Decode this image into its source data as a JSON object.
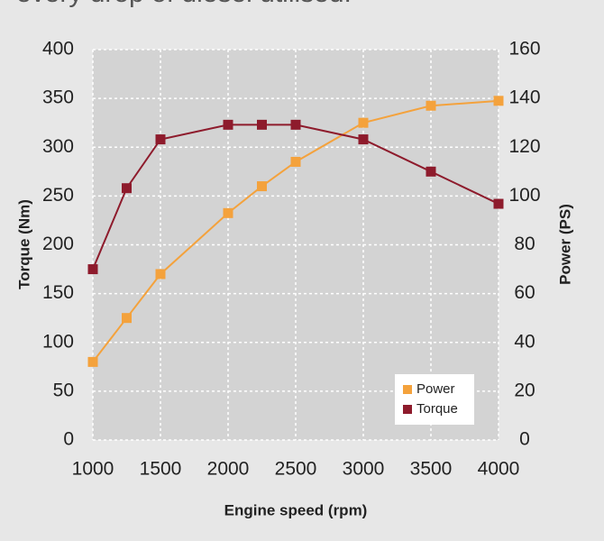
{
  "chart_data": {
    "type": "line",
    "caption": "every drop of diesel utilised.",
    "xlabel": "Engine speed (rpm)",
    "ylabel": "Torque (Nm)",
    "y2label": "Power (PS)",
    "x": [
      1000,
      1250,
      1500,
      2000,
      2250,
      2500,
      3000,
      3500,
      4000
    ],
    "xlim": [
      1000,
      4000
    ],
    "xticks": [
      1000,
      1500,
      2000,
      2500,
      3000,
      3500,
      4000
    ],
    "ylim": [
      0,
      400
    ],
    "yticks": [
      0,
      50,
      100,
      150,
      200,
      250,
      300,
      350,
      400
    ],
    "y2lim": [
      0,
      160
    ],
    "y2ticks": [
      0,
      20,
      40,
      60,
      80,
      100,
      120,
      140,
      160
    ],
    "grid": true,
    "legend": "lower right",
    "series": [
      {
        "name": "Power",
        "color": "#f4a23c",
        "axis": "y2",
        "values": [
          32,
          50,
          68,
          93,
          104,
          114,
          130,
          137,
          139
        ]
      },
      {
        "name": "Torque",
        "color": "#8e1b2c",
        "values": [
          175,
          258,
          308,
          323,
          323,
          323,
          308,
          275,
          242
        ]
      }
    ]
  }
}
